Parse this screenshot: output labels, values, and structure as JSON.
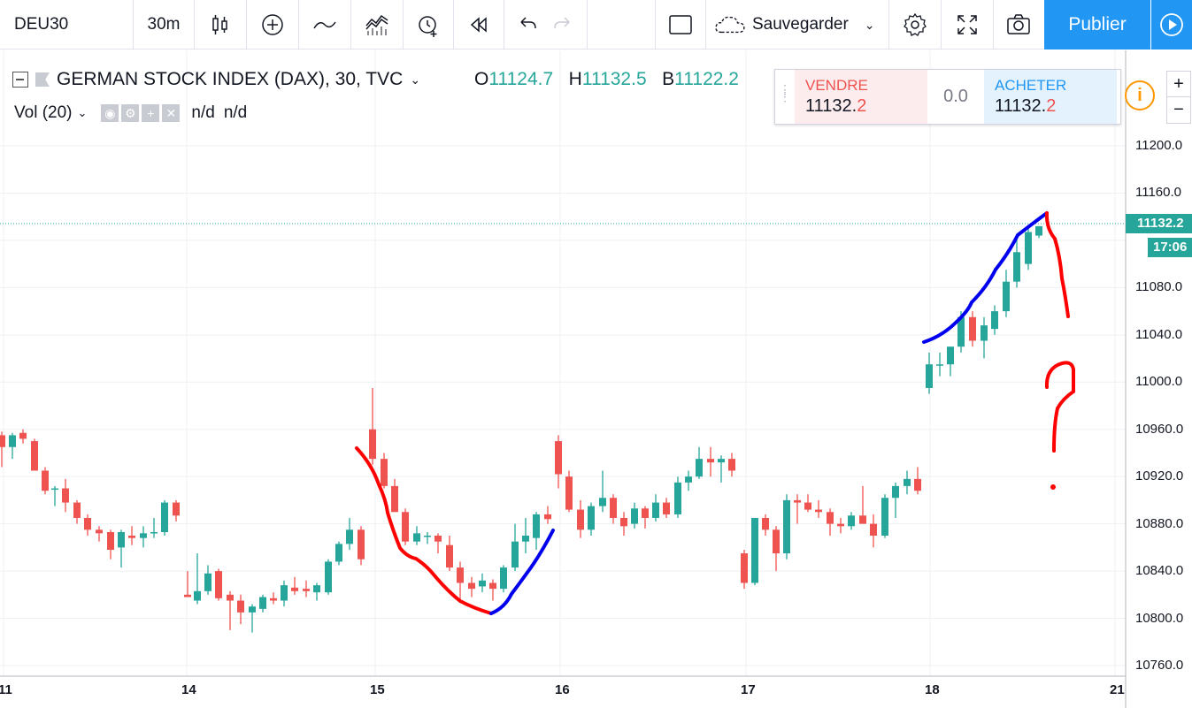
{
  "toolbar": {
    "symbol": "DEU30",
    "interval": "30m",
    "save_label": "Sauvegarder",
    "publish_label": "Publier",
    "icons": [
      "candles-icon",
      "add-indicator-icon",
      "compare-icon",
      "indicators-icon",
      "alert-icon",
      "replay-icon",
      "undo-icon",
      "redo-icon",
      "layout-icon",
      "cloud-icon",
      "settings-icon",
      "fullscreen-icon",
      "camera-icon",
      "play-icon"
    ]
  },
  "legend": {
    "title": "GERMAN STOCK INDEX (DAX), 30, TVC",
    "o_label": "O",
    "o_value": "11124.7",
    "h_label": "H",
    "h_value": "11132.5",
    "b_label": "B",
    "b_value": "11122.2"
  },
  "volume": {
    "label": "Vol (20)",
    "v1": "n/d",
    "v2": "n/d"
  },
  "trade": {
    "sell_label": "VENDRE",
    "sell_value_main": "11132.",
    "sell_value_tail": "2",
    "spread": "0.0",
    "buy_label": "ACHETER",
    "buy_value_main": "11132.",
    "buy_value_tail": "2"
  },
  "zoom": {
    "plus": "+",
    "minus": "−"
  },
  "price_axis": {
    "ticks": [
      "11200.0",
      "11160.0",
      "11080.0",
      "11040.0",
      "11000.0",
      "10960.0",
      "10920.0",
      "10880.0",
      "10840.0",
      "10800.0",
      "10760.0"
    ],
    "current_price": "11132.2",
    "countdown": "17:06"
  },
  "time_axis": {
    "ticks": [
      "11",
      "14",
      "15",
      "16",
      "17",
      "18",
      "21"
    ]
  },
  "colors": {
    "up": "#26a69a",
    "down": "#ef5350",
    "accent": "#2196f3",
    "annotation_red": "#ff0000",
    "annotation_blue": "#0000ee"
  }
}
